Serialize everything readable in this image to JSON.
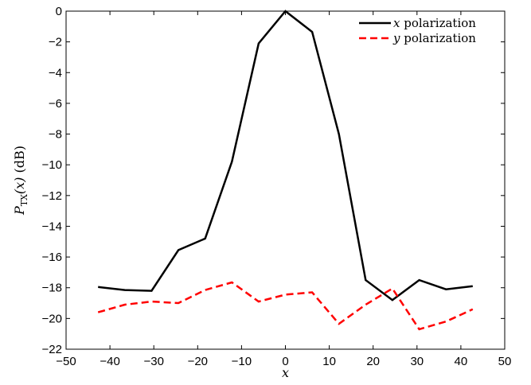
{
  "chart_data": {
    "type": "line",
    "xlabel": "x",
    "ylabel": "P_TX(x) (dB)",
    "ylabel_parts": {
      "main": "P",
      "sub": "TX",
      "arg": "(x)",
      "unit": " (dB)"
    },
    "xlim": [
      -50,
      50
    ],
    "ylim": [
      -22,
      0
    ],
    "xticks": [
      -50,
      -40,
      -30,
      -20,
      -10,
      0,
      10,
      20,
      30,
      40,
      50
    ],
    "yticks": [
      0,
      -2,
      -4,
      -6,
      -8,
      -10,
      -12,
      -14,
      -16,
      -18,
      -20,
      -22
    ],
    "xtick_labels": [
      "−50",
      "−40",
      "−30",
      "−20",
      "−10",
      "0",
      "10",
      "20",
      "30",
      "40",
      "50"
    ],
    "ytick_labels": [
      "0",
      "−2",
      "−4",
      "−6",
      "−8",
      "−10",
      "−12",
      "−14",
      "−16",
      "−18",
      "−20",
      "−22"
    ],
    "grid": false,
    "legend_position": "top-right",
    "series": [
      {
        "name": "x polarization",
        "name_var": "x",
        "name_rest": " polarization",
        "color": "#000000",
        "style": "solid",
        "x": [
          -42.7,
          -36.6,
          -30.5,
          -24.4,
          -18.3,
          -12.2,
          -6.1,
          0,
          6.1,
          12.2,
          18.3,
          24.4,
          30.5,
          36.6,
          42.7
        ],
        "y": [
          -17.95,
          -18.15,
          -18.2,
          -15.55,
          -14.8,
          -9.8,
          -2.1,
          0.0,
          -1.35,
          -8.0,
          -17.5,
          -18.8,
          -17.5,
          -18.1,
          -17.9
        ]
      },
      {
        "name": "y polarization",
        "name_var": "y",
        "name_rest": " polarization",
        "color": "#ff0000",
        "style": "dashed",
        "x": [
          -42.7,
          -36.6,
          -30.5,
          -24.4,
          -18.3,
          -12.2,
          -6.1,
          0,
          6.1,
          12.2,
          18.3,
          24.4,
          30.5,
          36.6,
          42.7
        ],
        "y": [
          -19.6,
          -19.1,
          -18.9,
          -19.0,
          -18.15,
          -17.65,
          -18.9,
          -18.45,
          -18.3,
          -20.35,
          -19.1,
          -18.05,
          -20.7,
          -20.2,
          -19.4
        ]
      }
    ]
  }
}
